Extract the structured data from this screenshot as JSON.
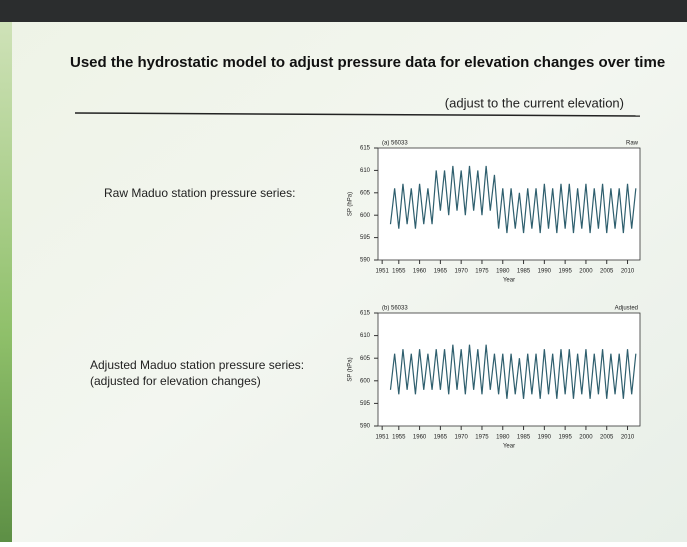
{
  "slide": {
    "title": "Used the hydrostatic model to adjust pressure data for elevation changes over time",
    "subtitle": "(adjust to the current elevation)",
    "raw_label": "Raw Maduo station pressure series:",
    "adjusted_label": "Adjusted Maduo station pressure series:",
    "adjusted_note": "(adjusted for elevation changes)"
  },
  "chart_data": [
    {
      "type": "line",
      "panel_label": "(a) 56033",
      "corner_label": "Raw",
      "ylabel": "SP (hPa)",
      "xlabel": "Year",
      "xlim": [
        1950,
        2013
      ],
      "ylim": [
        590,
        615
      ],
      "yticks": [
        590,
        595,
        600,
        605,
        610,
        615
      ],
      "xticks": [
        1951,
        1955,
        1960,
        1965,
        1970,
        1975,
        1980,
        1985,
        1990,
        1995,
        2000,
        2005,
        2010
      ],
      "x": [
        1953,
        1954,
        1955,
        1956,
        1957,
        1958,
        1959,
        1960,
        1961,
        1962,
        1963,
        1964,
        1965,
        1966,
        1967,
        1968,
        1969,
        1970,
        1971,
        1972,
        1973,
        1974,
        1975,
        1976,
        1977,
        1978,
        1979,
        1980,
        1981,
        1982,
        1983,
        1984,
        1985,
        1986,
        1987,
        1988,
        1989,
        1990,
        1991,
        1992,
        1993,
        1994,
        1995,
        1996,
        1997,
        1998,
        1999,
        2000,
        2001,
        2002,
        2003,
        2004,
        2005,
        2006,
        2007,
        2008,
        2009,
        2010,
        2011,
        2012
      ],
      "series": [
        {
          "color": "#2f5f6e",
          "values": [
            598,
            606,
            597,
            607,
            598,
            606,
            597,
            607,
            598,
            606,
            598,
            610,
            601,
            610,
            600,
            611,
            601,
            610,
            600,
            611,
            601,
            610,
            600,
            611,
            601,
            609,
            597,
            606,
            596,
            606,
            597,
            605,
            596,
            606,
            597,
            606,
            596,
            607,
            597,
            606,
            596,
            607,
            597,
            607,
            596,
            606,
            597,
            607,
            596,
            606,
            597,
            607,
            596,
            606,
            597,
            606,
            596,
            607,
            597,
            606
          ]
        }
      ]
    },
    {
      "type": "line",
      "panel_label": "(b) 56033",
      "corner_label": "Adjusted",
      "ylabel": "SP (hPa)",
      "xlabel": "Year",
      "xlim": [
        1950,
        2013
      ],
      "ylim": [
        590,
        615
      ],
      "yticks": [
        590,
        595,
        600,
        605,
        610,
        615
      ],
      "xticks": [
        1951,
        1955,
        1960,
        1965,
        1970,
        1975,
        1980,
        1985,
        1990,
        1995,
        2000,
        2005,
        2010
      ],
      "x": [
        1953,
        1954,
        1955,
        1956,
        1957,
        1958,
        1959,
        1960,
        1961,
        1962,
        1963,
        1964,
        1965,
        1966,
        1967,
        1968,
        1969,
        1970,
        1971,
        1972,
        1973,
        1974,
        1975,
        1976,
        1977,
        1978,
        1979,
        1980,
        1981,
        1982,
        1983,
        1984,
        1985,
        1986,
        1987,
        1988,
        1989,
        1990,
        1991,
        1992,
        1993,
        1994,
        1995,
        1996,
        1997,
        1998,
        1999,
        2000,
        2001,
        2002,
        2003,
        2004,
        2005,
        2006,
        2007,
        2008,
        2009,
        2010,
        2011,
        2012
      ],
      "series": [
        {
          "color": "#2f5f6e",
          "values": [
            598,
            606,
            597,
            607,
            598,
            606,
            597,
            607,
            598,
            606,
            598,
            607,
            598,
            607,
            597,
            608,
            598,
            607,
            597,
            608,
            598,
            607,
            597,
            608,
            598,
            606,
            597,
            606,
            596,
            606,
            597,
            605,
            596,
            606,
            597,
            606,
            596,
            607,
            597,
            606,
            596,
            607,
            597,
            607,
            596,
            606,
            597,
            607,
            596,
            606,
            597,
            607,
            596,
            606,
            597,
            606,
            596,
            607,
            597,
            606
          ]
        }
      ]
    }
  ]
}
